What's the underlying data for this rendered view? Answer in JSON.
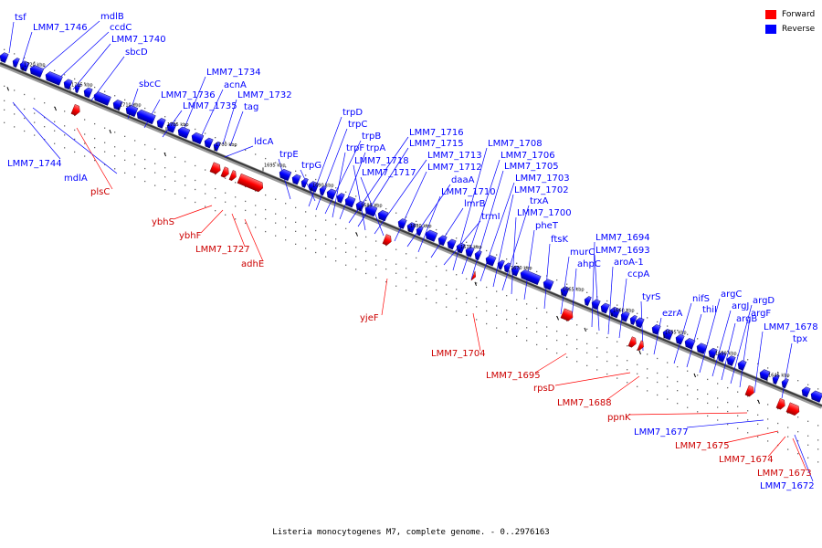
{
  "legend": [
    {
      "label": "Forward",
      "color": "#ff0000"
    },
    {
      "label": "Reverse",
      "color": "#0000ff"
    }
  ],
  "caption": "Listeria monocytogenes M7, complete genome. - 0..2976163",
  "colors": {
    "forward": "#ff0000",
    "reverse": "#0000ff",
    "backbone": "#555555"
  },
  "ticks": [
    "1720 kbp",
    "1715 kbp",
    "1710 kbp",
    "1705 kbp",
    "1700 kbp",
    "1695 kbp",
    "1690 kbp",
    "1685 kbp",
    "1680 kbp",
    "1675 kbp",
    "1670 kbp",
    "1665 kbp",
    "1660 kbp",
    "1655 kbp",
    "1650 kbp",
    "1645 kbp"
  ],
  "reverse_genes": [
    "tsf",
    "LMM7_1746",
    "mdlB",
    "ccdC",
    "LMM7_1740",
    "sbcD",
    "sbcC",
    "LMM7_1734",
    "acnA",
    "LMM7_1736",
    "LMM7_1732",
    "LMM7_1735",
    "tag",
    "ldcA",
    "trpE",
    "trpG",
    "trpD",
    "trpC",
    "trpB",
    "trpF",
    "trpA",
    "LMM7_1716",
    "LMM7_1715",
    "LMM7_1718",
    "LMM7_1713",
    "LMM7_1717",
    "LMM7_1712",
    "daaA",
    "LMM7_1710",
    "lmrB",
    "trmI",
    "LMM7_1708",
    "LMM7_1706",
    "LMM7_1705",
    "LMM7_1703",
    "LMM7_1702",
    "trxA",
    "LMM7_1700",
    "pheT",
    "ftsK",
    "murC",
    "ahpC",
    "LMM7_1694",
    "LMM7_1693",
    "aroA-1",
    "ccpA",
    "tyrS",
    "ezrA",
    "nifS",
    "thiI",
    "argC",
    "argJ",
    "argB",
    "argD",
    "argF",
    "LMM7_1678",
    "tpx",
    "LMM7_1744",
    "mdlA",
    "LMM7_1677",
    "LMM7_1672"
  ],
  "forward_genes": [
    "plsC",
    "ybhS",
    "ybhF",
    "LMM7_1727",
    "adhE",
    "yjeF",
    "LMM7_1704",
    "LMM7_1695",
    "rpsD",
    "LMM7_1688",
    "ppnK",
    "LMM7_1675",
    "LMM7_1674",
    "LMM7_1673"
  ]
}
